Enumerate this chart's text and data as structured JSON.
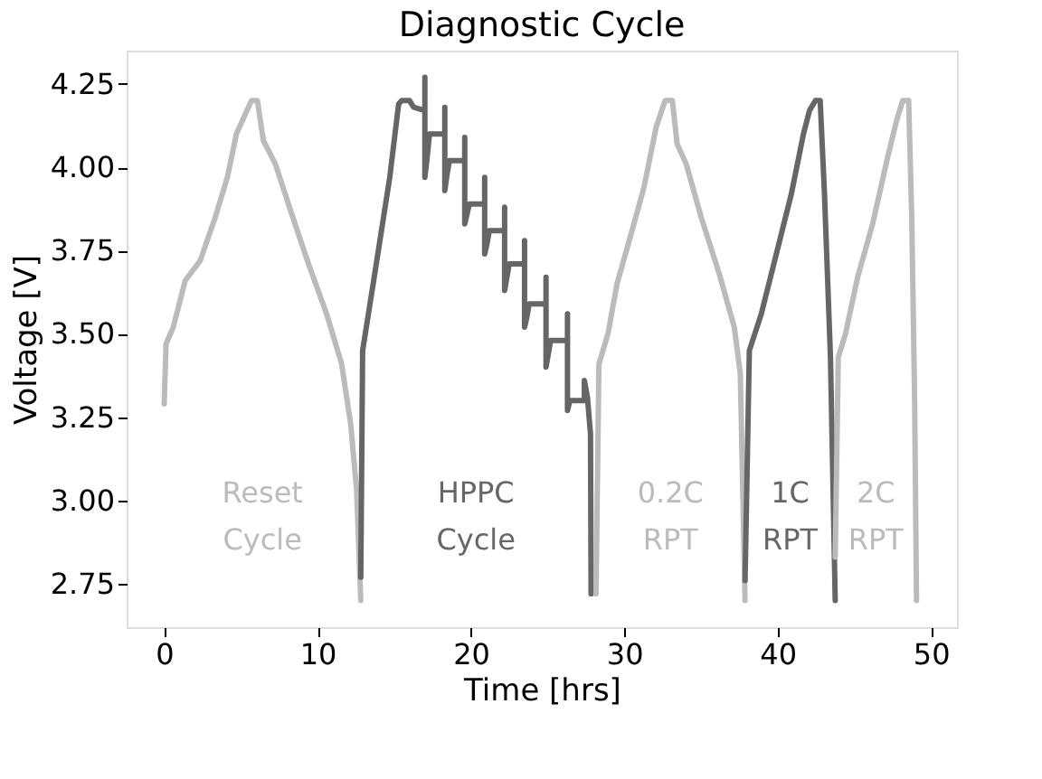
{
  "chart_data": {
    "type": "line",
    "title": "Diagnostic Cycle",
    "xlabel": "Time [hrs]",
    "ylabel": "Voltage [V]",
    "xlim": [
      -2.45,
      51.7
    ],
    "xticks": [
      0,
      10,
      20,
      30,
      40,
      50
    ],
    "ylim": [
      2.62,
      4.35
    ],
    "yticks": [
      2.75,
      {
        "value": 3.0,
        "label": "3.00"
      },
      3.25,
      {
        "value": 3.5,
        "label": "3.50"
      },
      3.75,
      {
        "value": 4.0,
        "label": "4.00"
      },
      4.25
    ],
    "grid": false,
    "legend": false,
    "marker": "none",
    "line_style": "solid",
    "series": [
      {
        "name": "Reset\nCycle",
        "color": "#bbbbbb",
        "x": [
          0,
          0.12,
          0.59,
          1.37,
          2.35,
          3.33,
          4.12,
          4.71,
          5.49,
          5.69,
          6.08,
          6.27,
          6.47,
          7.25,
          8.24,
          9.41,
          10.59,
          11.57,
          12.16,
          12.55,
          12.82
        ],
        "values": [
          3.29,
          3.47,
          3.52,
          3.66,
          3.72,
          3.85,
          3.97,
          4.1,
          4.18,
          4.2,
          4.2,
          4.14,
          4.08,
          4.01,
          3.87,
          3.71,
          3.56,
          3.41,
          3.23,
          3.03,
          2.7
        ]
      },
      {
        "name": "HPPC\nCycle",
        "color": "#666666",
        "x": [
          12.82,
          12.94,
          13.73,
          14.71,
          15.29,
          15.49,
          16.0,
          16.27,
          17.0,
          17.0,
          17.0,
          17.15,
          17.3,
          18.3,
          18.3,
          18.3,
          18.45,
          18.6,
          19.6,
          19.6,
          19.6,
          19.75,
          19.9,
          20.9,
          20.9,
          20.9,
          21.05,
          21.2,
          22.2,
          22.2,
          22.2,
          22.35,
          22.5,
          23.5,
          23.5,
          23.5,
          23.65,
          23.8,
          24.9,
          24.9,
          24.9,
          25.05,
          25.2,
          26.3,
          26.3,
          26.3,
          26.45,
          26.6,
          27.4,
          27.4,
          27.6,
          27.8,
          27.84
        ],
        "values": [
          2.77,
          3.45,
          3.68,
          3.97,
          4.19,
          4.2,
          4.2,
          4.18,
          4.17,
          4.27,
          3.97,
          4.03,
          4.1,
          4.1,
          4.18,
          3.93,
          3.98,
          4.02,
          4.02,
          4.09,
          3.83,
          3.86,
          3.89,
          3.89,
          3.97,
          3.74,
          3.77,
          3.81,
          3.81,
          3.88,
          3.63,
          3.67,
          3.71,
          3.71,
          3.78,
          3.52,
          3.55,
          3.59,
          3.59,
          3.67,
          3.4,
          3.44,
          3.48,
          3.48,
          3.56,
          3.27,
          3.3,
          3.3,
          3.3,
          3.36,
          3.31,
          3.2,
          2.72
        ]
      },
      {
        "name": "0.2C\nRPT",
        "color": "#bbbbbb",
        "x": [
          28.16,
          28.35,
          28.94,
          29.53,
          30.51,
          31.29,
          32.08,
          32.67,
          33.14,
          33.45,
          34.04,
          35.02,
          36.2,
          37.18,
          37.57,
          37.88
        ],
        "values": [
          2.72,
          3.41,
          3.5,
          3.65,
          3.81,
          3.94,
          4.12,
          4.2,
          4.2,
          4.07,
          4.01,
          3.85,
          3.68,
          3.52,
          3.38,
          2.7
        ]
      },
      {
        "name": "1C\nRPT",
        "color": "#666666",
        "x": [
          37.88,
          38.16,
          38.94,
          39.92,
          40.9,
          41.69,
          42.08,
          42.47,
          42.78,
          43.06,
          43.45,
          43.76
        ],
        "values": [
          2.76,
          3.45,
          3.56,
          3.74,
          3.92,
          4.1,
          4.17,
          4.2,
          4.2,
          3.92,
          3.43,
          2.7
        ]
      },
      {
        "name": "2C\nRPT",
        "color": "#bbbbbb",
        "x": [
          43.76,
          43.96,
          44.43,
          45.22,
          46.2,
          47.18,
          47.76,
          48.16,
          48.55,
          48.75,
          48.94,
          49.06
        ],
        "values": [
          2.83,
          3.43,
          3.5,
          3.67,
          3.83,
          4.03,
          4.14,
          4.2,
          4.2,
          3.85,
          3.3,
          2.7
        ]
      }
    ]
  }
}
